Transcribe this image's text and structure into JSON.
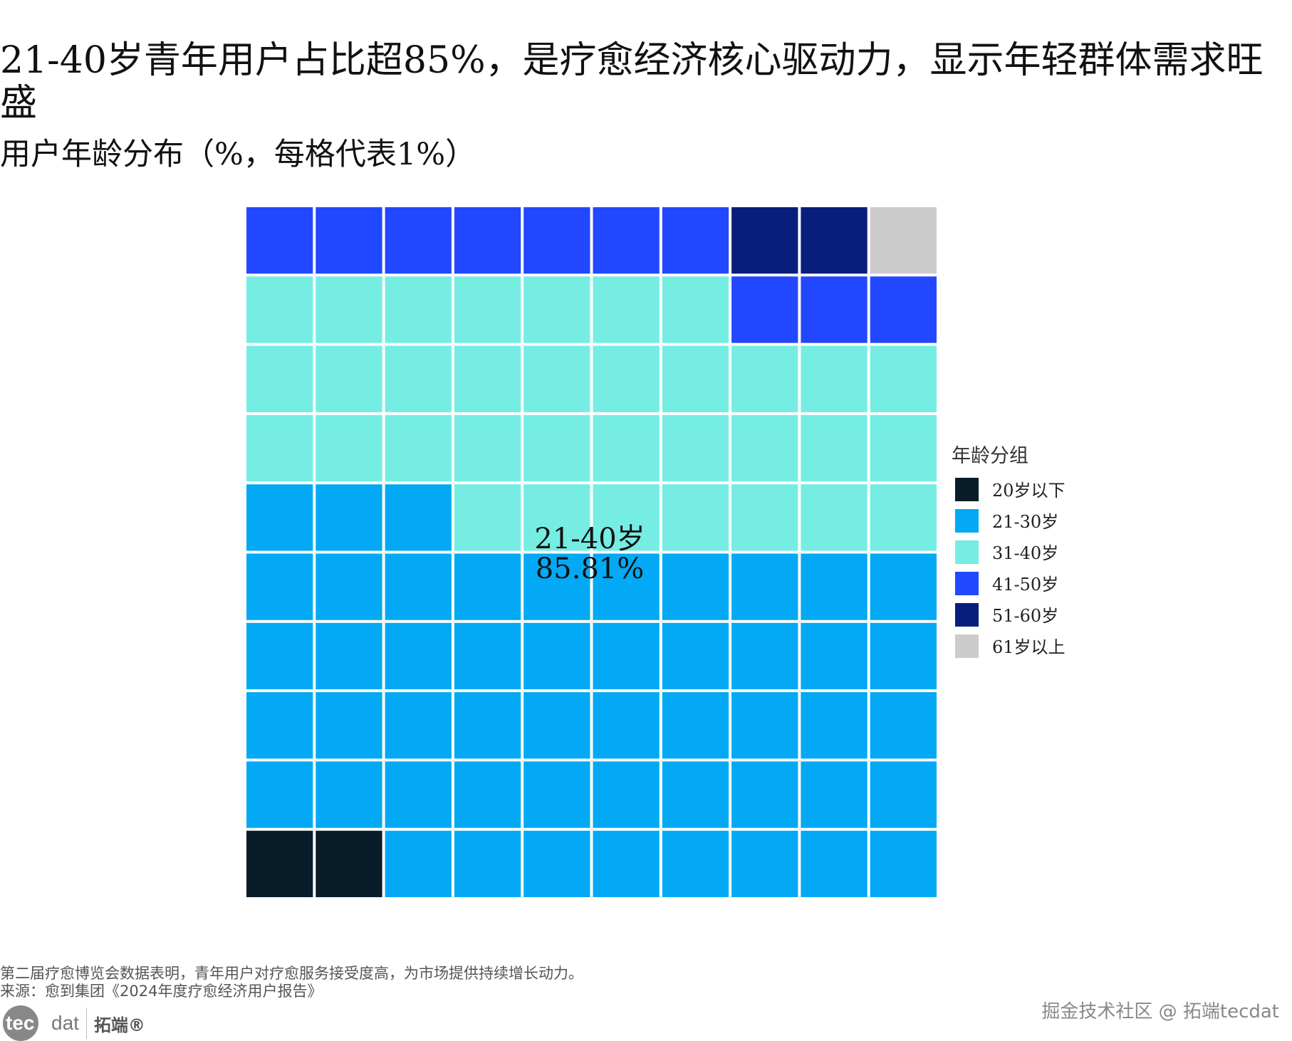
{
  "title": "21-40岁青年用户占比超85%，是疗愈经济核心驱动力，显示年轻群体需求旺盛",
  "subtitle": "用户年龄分布（%，每格代表1%）",
  "chart_data": {
    "type": "waffle",
    "grid": [
      10,
      10
    ],
    "fill_order": "bottom-left, left-to-right, upward",
    "legend_title": "年龄分组",
    "legend_placement": "right",
    "categories": [
      "20岁以下",
      "21-30岁",
      "31-40岁",
      "41-50岁",
      "51-60岁",
      "61岁以上"
    ],
    "values": [
      2,
      51,
      34,
      10,
      2,
      1
    ],
    "colors": [
      "#091c2a",
      "#03a9f4",
      "#76ede3",
      "#2148ff",
      "#071e7c",
      "#cccccc"
    ],
    "annotation": {
      "label": "21-40岁",
      "value": "85.81%"
    }
  },
  "footer": {
    "note": "第二届疗愈博览会数据表明，青年用户对疗愈服务接受度高，为市场提供持续增长动力。",
    "source": "来源：愈到集团《2024年度疗愈经济用户报告》"
  },
  "logo": {
    "tec": "tec",
    "dat": "dat",
    "cn": "拓端®"
  },
  "watermark": "掘金技术社区 @ 拓端tecdat"
}
